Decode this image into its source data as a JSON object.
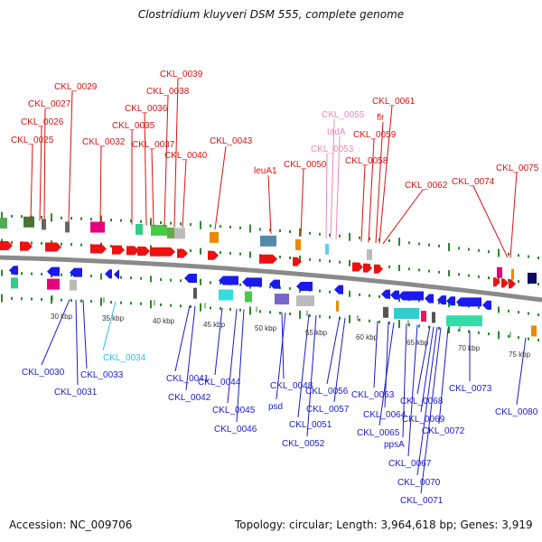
{
  "title": "Clostridium kluyveri DSM 555, complete genome",
  "footer": {
    "accession": "Accession: NC_009706",
    "summary": "Topology: circular; Length: 3,964,618 bp; Genes: 3,919"
  },
  "colors": {
    "backbone": "#8a8a8a",
    "forward": "#ee1111",
    "reverse": "#1a1aee",
    "tick": "#2a8a2a",
    "label_top": "#dd1111",
    "label_top_pink": "#ee88bb",
    "label_bottom": "#1a1acc",
    "label_bottom_cyan": "#33bbee",
    "scale_text": "#333333"
  },
  "scale_ticks": [
    "30 kbp",
    "35 kbp",
    "40 kbp",
    "45 kbp",
    "50 kbp",
    "55 kbp",
    "60 kbp",
    "65 kbp",
    "70 kbp",
    "75 kbp"
  ],
  "top_labels": [
    "CKL_0025",
    "CKL_0026",
    "CKL_0027",
    "CKL_0029",
    "CKL_0032",
    "CKL_0035",
    "CKL_0036",
    "CKL_0037",
    "CKL_0038",
    "CKL_0039",
    "CKL_0040",
    "CKL_0043",
    "leuA1",
    "CKL_0050",
    "CKL_0053",
    "CKL_0055",
    "tadA",
    "CKL_0058",
    "CKL_0059",
    "flr",
    "CKL_0061",
    "CKL_0062",
    "CKL_0074",
    "CKL_0075"
  ],
  "bottom_labels": [
    "CKL_0030",
    "CKL_0031",
    "CKL_0033",
    "CKL_0034",
    "CKL_0041",
    "CKL_0042",
    "CKL_0044",
    "CKL_0045",
    "CKL_0046",
    "psd",
    "CKL_0048",
    "CKL_0051",
    "CKL_0052",
    "CKL_0056",
    "CKL_0057",
    "CKL_0063",
    "CKL_0064",
    "CKL_0065",
    "ppsA",
    "CKL_0067",
    "CKL_0068",
    "CKL_0069",
    "CKL_0070",
    "CKL_0071",
    "CKL_0072",
    "CKL_0073",
    "CKL_0080"
  ]
}
